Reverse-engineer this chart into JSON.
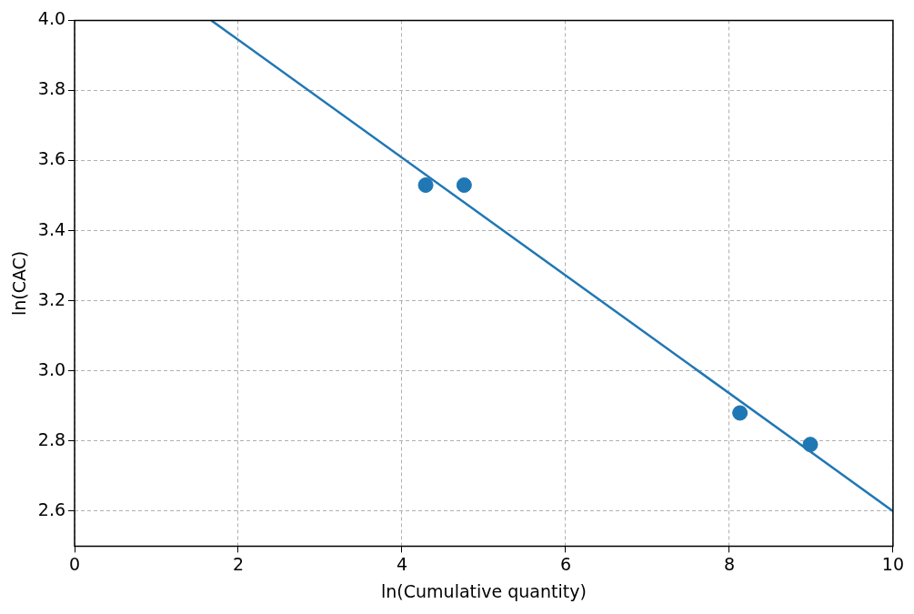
{
  "chart_data": {
    "type": "scatter",
    "xlabel": "ln(Cumulative quantity)",
    "ylabel": "ln(CAC)",
    "xlim": [
      0,
      10
    ],
    "xticks": [
      0,
      2,
      4,
      6,
      8,
      10
    ],
    "ylim": [
      2.5,
      4.0
    ],
    "yticks": [
      2.6,
      2.8,
      {
        "value": 3,
        "label": "3.0"
      },
      3.2,
      3.4,
      3.6,
      3.8,
      {
        "value": 4,
        "label": "4.0"
      }
    ],
    "grid": true,
    "marker": "circle",
    "series": [
      {
        "color": "#1f77b4",
        "x": [
          4.29,
          4.76,
          8.13,
          8.99
        ],
        "values": [
          3.53,
          3.53,
          2.88,
          2.79
        ]
      },
      {
        "type": "line",
        "color": "#1f77b4",
        "x": [
          1.67,
          10
        ],
        "values": [
          4.0,
          2.6
        ],
        "marker": "none",
        "line_style": "solid"
      }
    ]
  }
}
